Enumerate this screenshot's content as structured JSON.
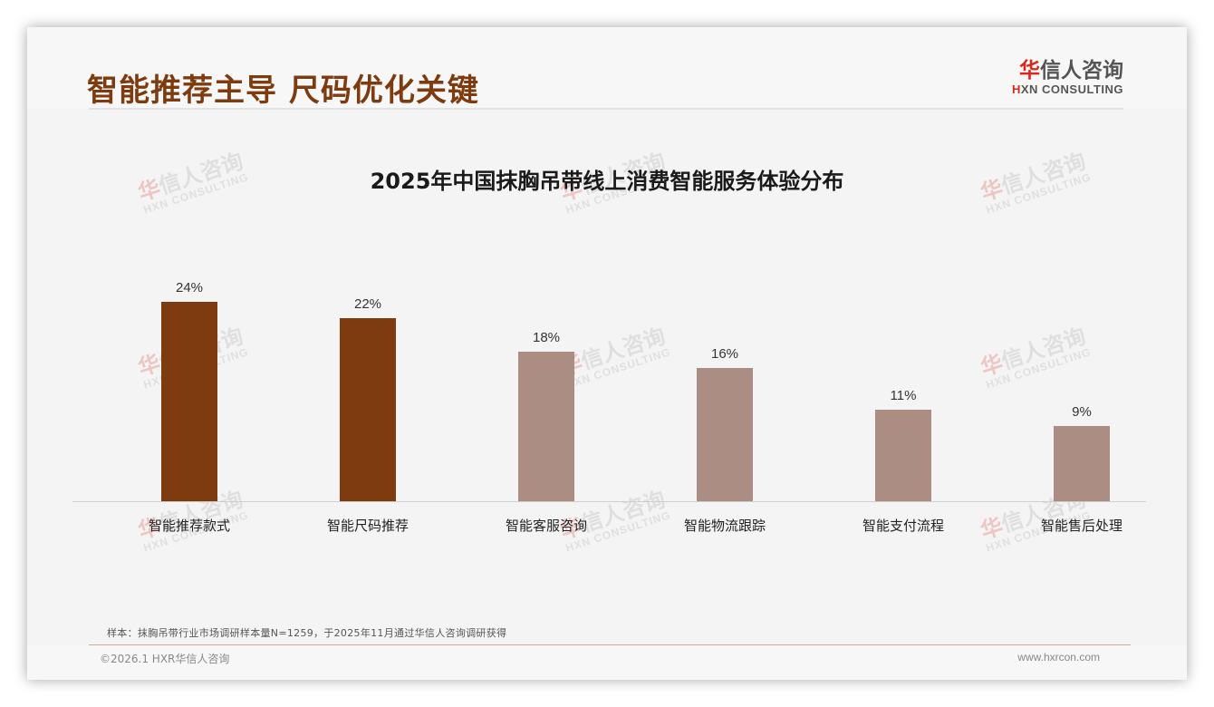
{
  "header": {
    "title": "智能推荐主导 尺码优化关键",
    "logo": {
      "cn_mark": "华",
      "cn_rest": "信人咨询",
      "en_mark": "H",
      "en_rest": "XN CONSULTING"
    }
  },
  "watermark": {
    "cn_mark": "华",
    "cn_rest": "信人咨询",
    "en": "HXN CONSULTING"
  },
  "colors": {
    "highlight_bar": "#7e3b0f",
    "normal_bar": "#ab8d84",
    "title": "#7e3b0f",
    "brand_red": "#d9281c"
  },
  "chart_data": {
    "type": "bar",
    "title": "2025年中国抹胸吊带线上消费智能服务体验分布",
    "categories": [
      "智能推荐款式",
      "智能尺码推荐",
      "智能客服咨询",
      "智能物流跟踪",
      "智能支付流程",
      "智能售后处理"
    ],
    "values": [
      24,
      22,
      18,
      16,
      11,
      9
    ],
    "value_labels": [
      "24%",
      "22%",
      "18%",
      "16%",
      "11%",
      "9%"
    ],
    "highlighted": [
      true,
      true,
      false,
      false,
      false,
      false
    ],
    "xlabel": "",
    "ylabel": "",
    "ylim": [
      0,
      24
    ],
    "grid": false,
    "legend": null,
    "unit": "%"
  },
  "footer": {
    "note": "样本：抹胸吊带行业市场调研样本量N=1259，于2025年11月通过华信人咨询调研获得",
    "copyright": "©2026.1 HXR华信人咨询",
    "website": "www.hxrcon.com"
  }
}
